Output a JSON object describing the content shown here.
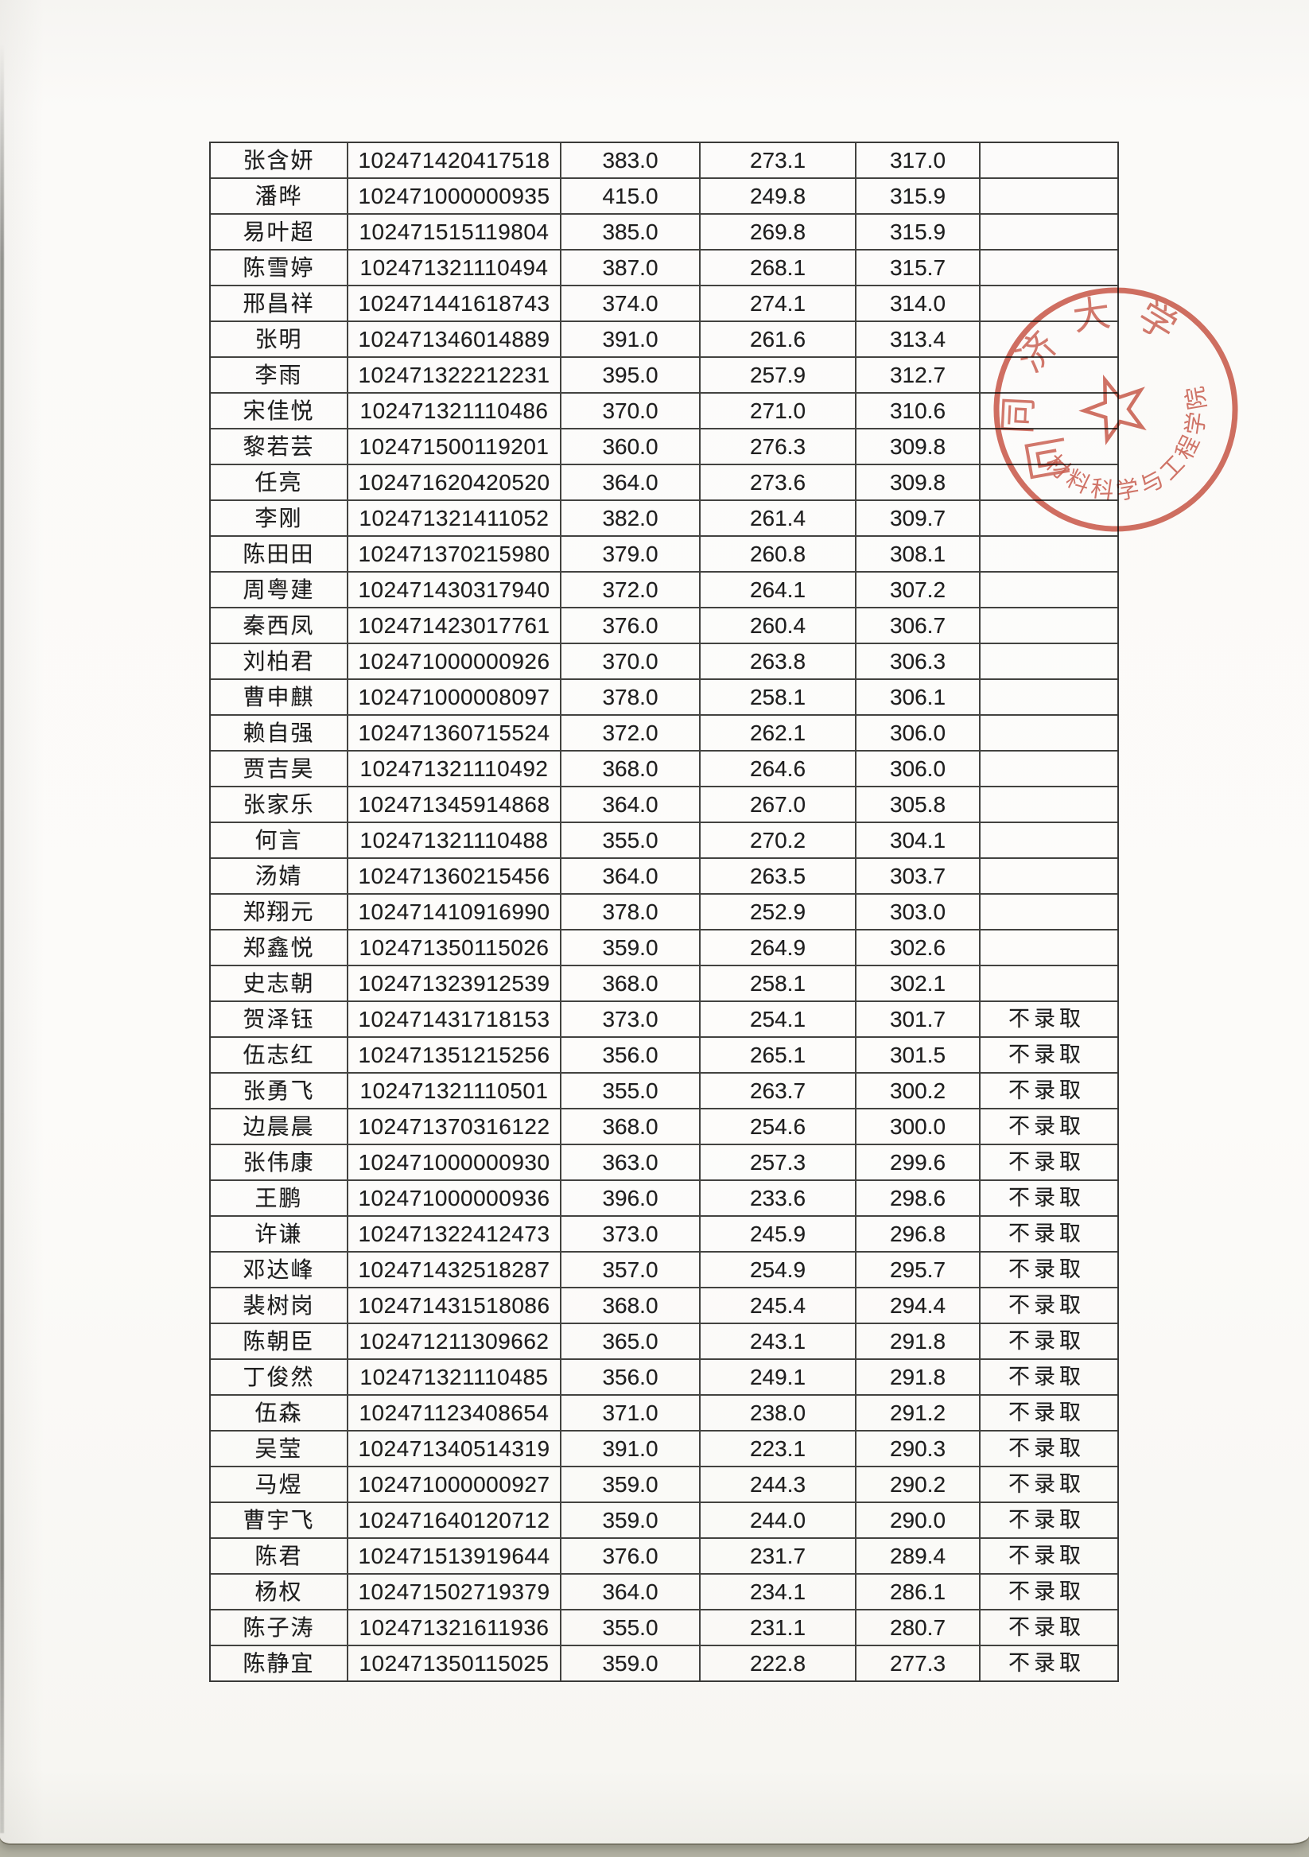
{
  "page": {
    "kind": "scanned admission score list",
    "not_admitted_label": "不录取"
  },
  "stamp": {
    "top_text": "同济大学",
    "bottom_text": "材料科学与工程学院",
    "color": "#c2402f"
  },
  "table": {
    "rows": [
      {
        "name": "张含妍",
        "id": "102471420417518",
        "s1": "383.0",
        "s2": "273.1",
        "s3": "317.0",
        "status": ""
      },
      {
        "name": "潘晔",
        "id": "102471000000935",
        "s1": "415.0",
        "s2": "249.8",
        "s3": "315.9",
        "status": ""
      },
      {
        "name": "易叶超",
        "id": "102471515119804",
        "s1": "385.0",
        "s2": "269.8",
        "s3": "315.9",
        "status": ""
      },
      {
        "name": "陈雪婷",
        "id": "102471321110494",
        "s1": "387.0",
        "s2": "268.1",
        "s3": "315.7",
        "status": ""
      },
      {
        "name": "邢昌祥",
        "id": "102471441618743",
        "s1": "374.0",
        "s2": "274.1",
        "s3": "314.0",
        "status": ""
      },
      {
        "name": "张明",
        "id": "102471346014889",
        "s1": "391.0",
        "s2": "261.6",
        "s3": "313.4",
        "status": ""
      },
      {
        "name": "李雨",
        "id": "102471322212231",
        "s1": "395.0",
        "s2": "257.9",
        "s3": "312.7",
        "status": ""
      },
      {
        "name": "宋佳悦",
        "id": "102471321110486",
        "s1": "370.0",
        "s2": "271.0",
        "s3": "310.6",
        "status": ""
      },
      {
        "name": "黎若芸",
        "id": "102471500119201",
        "s1": "360.0",
        "s2": "276.3",
        "s3": "309.8",
        "status": ""
      },
      {
        "name": "任亮",
        "id": "102471620420520",
        "s1": "364.0",
        "s2": "273.6",
        "s3": "309.8",
        "status": ""
      },
      {
        "name": "李刚",
        "id": "102471321411052",
        "s1": "382.0",
        "s2": "261.4",
        "s3": "309.7",
        "status": ""
      },
      {
        "name": "陈田田",
        "id": "102471370215980",
        "s1": "379.0",
        "s2": "260.8",
        "s3": "308.1",
        "status": ""
      },
      {
        "name": "周粤建",
        "id": "102471430317940",
        "s1": "372.0",
        "s2": "264.1",
        "s3": "307.2",
        "status": ""
      },
      {
        "name": "秦西凤",
        "id": "102471423017761",
        "s1": "376.0",
        "s2": "260.4",
        "s3": "306.7",
        "status": ""
      },
      {
        "name": "刘柏君",
        "id": "102471000000926",
        "s1": "370.0",
        "s2": "263.8",
        "s3": "306.3",
        "status": ""
      },
      {
        "name": "曹申麒",
        "id": "102471000008097",
        "s1": "378.0",
        "s2": "258.1",
        "s3": "306.1",
        "status": ""
      },
      {
        "name": "赖自强",
        "id": "102471360715524",
        "s1": "372.0",
        "s2": "262.1",
        "s3": "306.0",
        "status": ""
      },
      {
        "name": "贾吉昊",
        "id": "102471321110492",
        "s1": "368.0",
        "s2": "264.6",
        "s3": "306.0",
        "status": ""
      },
      {
        "name": "张家乐",
        "id": "102471345914868",
        "s1": "364.0",
        "s2": "267.0",
        "s3": "305.8",
        "status": ""
      },
      {
        "name": "何言",
        "id": "102471321110488",
        "s1": "355.0",
        "s2": "270.2",
        "s3": "304.1",
        "status": ""
      },
      {
        "name": "汤婧",
        "id": "102471360215456",
        "s1": "364.0",
        "s2": "263.5",
        "s3": "303.7",
        "status": ""
      },
      {
        "name": "郑翔元",
        "id": "102471410916990",
        "s1": "378.0",
        "s2": "252.9",
        "s3": "303.0",
        "status": ""
      },
      {
        "name": "郑鑫悦",
        "id": "102471350115026",
        "s1": "359.0",
        "s2": "264.9",
        "s3": "302.6",
        "status": ""
      },
      {
        "name": "史志朝",
        "id": "102471323912539",
        "s1": "368.0",
        "s2": "258.1",
        "s3": "302.1",
        "status": ""
      },
      {
        "name": "贺泽钰",
        "id": "102471431718153",
        "s1": "373.0",
        "s2": "254.1",
        "s3": "301.7",
        "status": "不录取"
      },
      {
        "name": "伍志红",
        "id": "102471351215256",
        "s1": "356.0",
        "s2": "265.1",
        "s3": "301.5",
        "status": "不录取"
      },
      {
        "name": "张勇飞",
        "id": "102471321110501",
        "s1": "355.0",
        "s2": "263.7",
        "s3": "300.2",
        "status": "不录取"
      },
      {
        "name": "边晨晨",
        "id": "102471370316122",
        "s1": "368.0",
        "s2": "254.6",
        "s3": "300.0",
        "status": "不录取"
      },
      {
        "name": "张伟康",
        "id": "102471000000930",
        "s1": "363.0",
        "s2": "257.3",
        "s3": "299.6",
        "status": "不录取"
      },
      {
        "name": "王鹏",
        "id": "102471000000936",
        "s1": "396.0",
        "s2": "233.6",
        "s3": "298.6",
        "status": "不录取"
      },
      {
        "name": "许谦",
        "id": "102471322412473",
        "s1": "373.0",
        "s2": "245.9",
        "s3": "296.8",
        "status": "不录取"
      },
      {
        "name": "邓达峰",
        "id": "102471432518287",
        "s1": "357.0",
        "s2": "254.9",
        "s3": "295.7",
        "status": "不录取"
      },
      {
        "name": "裴树岗",
        "id": "102471431518086",
        "s1": "368.0",
        "s2": "245.4",
        "s3": "294.4",
        "status": "不录取"
      },
      {
        "name": "陈朝臣",
        "id": "102471211309662",
        "s1": "365.0",
        "s2": "243.1",
        "s3": "291.8",
        "status": "不录取"
      },
      {
        "name": "丁俊然",
        "id": "102471321110485",
        "s1": "356.0",
        "s2": "249.1",
        "s3": "291.8",
        "status": "不录取"
      },
      {
        "name": "伍森",
        "id": "102471123408654",
        "s1": "371.0",
        "s2": "238.0",
        "s3": "291.2",
        "status": "不录取"
      },
      {
        "name": "吴莹",
        "id": "102471340514319",
        "s1": "391.0",
        "s2": "223.1",
        "s3": "290.3",
        "status": "不录取"
      },
      {
        "name": "马煜",
        "id": "102471000000927",
        "s1": "359.0",
        "s2": "244.3",
        "s3": "290.2",
        "status": "不录取"
      },
      {
        "name": "曹宇飞",
        "id": "102471640120712",
        "s1": "359.0",
        "s2": "244.0",
        "s3": "290.0",
        "status": "不录取"
      },
      {
        "name": "陈君",
        "id": "102471513919644",
        "s1": "376.0",
        "s2": "231.7",
        "s3": "289.4",
        "status": "不录取"
      },
      {
        "name": "杨权",
        "id": "102471502719379",
        "s1": "364.0",
        "s2": "234.1",
        "s3": "286.1",
        "status": "不录取"
      },
      {
        "name": "陈子涛",
        "id": "102471321611936",
        "s1": "355.0",
        "s2": "231.1",
        "s3": "280.7",
        "status": "不录取"
      },
      {
        "name": "陈静宜",
        "id": "102471350115025",
        "s1": "359.0",
        "s2": "222.8",
        "s3": "277.3",
        "status": "不录取"
      }
    ]
  }
}
